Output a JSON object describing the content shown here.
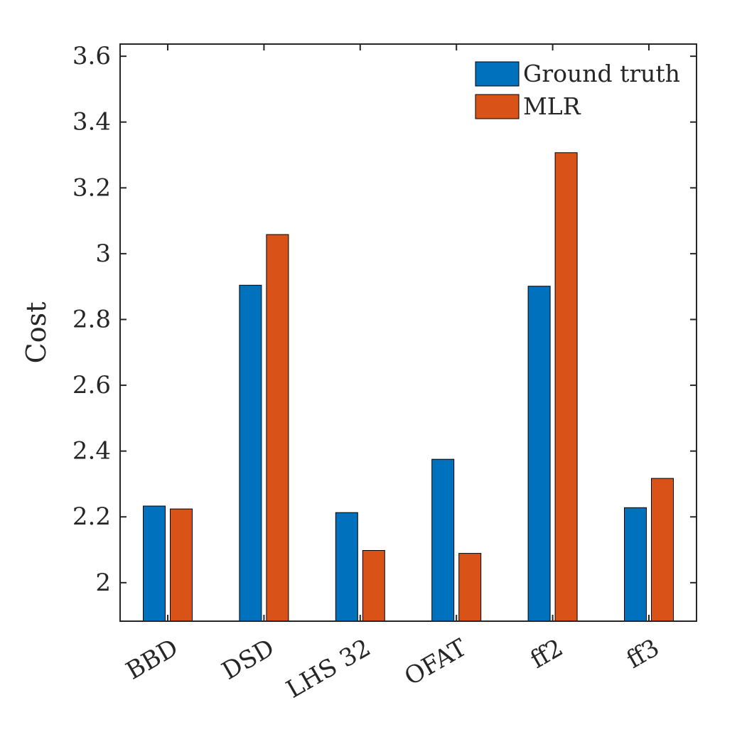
{
  "chart_data": {
    "type": "bar",
    "categories": [
      "BBD",
      "DSD",
      "LHS 32",
      "OFAT",
      "ff2",
      "ff3"
    ],
    "series": [
      {
        "name": "Ground truth",
        "color": "#0072BD",
        "values": [
          2.233,
          2.904,
          2.213,
          2.375,
          2.901,
          2.228
        ]
      },
      {
        "name": "MLR",
        "color": "#D95319",
        "values": [
          2.224,
          3.058,
          2.098,
          2.089,
          3.307,
          2.317
        ]
      }
    ],
    "title": "",
    "xlabel": "",
    "ylabel": "Cost",
    "ylim": [
      1.883,
      3.637
    ],
    "yticks": [
      2,
      2.2,
      2.4,
      2.6,
      2.8,
      3,
      3.2,
      3.4,
      3.6
    ],
    "ytick_labels": [
      "2",
      "2.2",
      "2.4",
      "2.6",
      "2.8",
      "3",
      "3.2",
      "3.4",
      "3.6"
    ],
    "grid": false,
    "legend_position": "top-right"
  }
}
